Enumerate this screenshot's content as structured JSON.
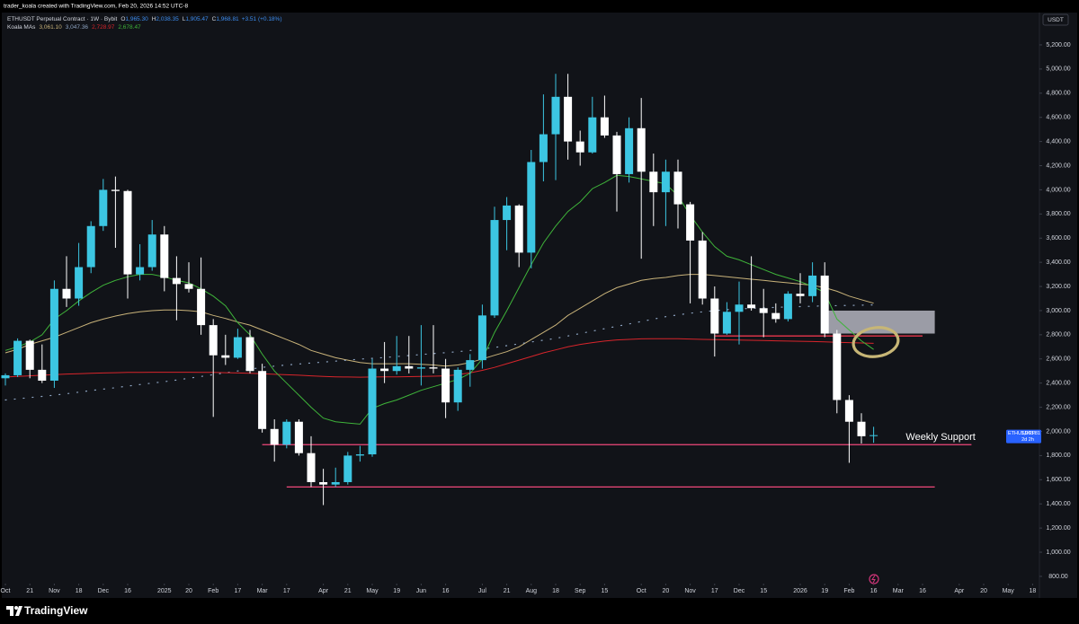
{
  "watermark": "trader_koala created with TradingView.com, Feb 20, 2026 14:52 UTC-8",
  "footer": {
    "brand": "TradingView"
  },
  "chart_data": {
    "type": "candlestick",
    "title": "ETHUSDT Perpetual Contract · 1W · Bybit",
    "header": {
      "keys": [
        "O",
        "H",
        "L",
        "C"
      ],
      "labels": [
        "1,965.30",
        "2,038.35",
        "1,905.47",
        "1,968.81"
      ],
      "change": "+3.51 (+0.18%)"
    },
    "currency": "USDT",
    "up_color": "#3cc6e2",
    "down_color": "#ffffff",
    "x": [
      "2024-10-07",
      "2024-10-14",
      "2024-10-21",
      "2024-10-28",
      "2024-11-04",
      "2024-11-11",
      "2024-11-18",
      "2024-11-25",
      "2024-12-02",
      "2024-12-09",
      "2024-12-16",
      "2024-12-23",
      "2024-12-30",
      "2025-01-06",
      "2025-01-13",
      "2025-01-20",
      "2025-01-27",
      "2025-02-03",
      "2025-02-10",
      "2025-02-17",
      "2025-02-24",
      "2025-03-03",
      "2025-03-10",
      "2025-03-17",
      "2025-03-24",
      "2025-03-31",
      "2025-04-07",
      "2025-04-14",
      "2025-04-21",
      "2025-04-28",
      "2025-05-05",
      "2025-05-12",
      "2025-05-19",
      "2025-05-26",
      "2025-06-02",
      "2025-06-09",
      "2025-06-16",
      "2025-06-23",
      "2025-06-30",
      "2025-07-07",
      "2025-07-14",
      "2025-07-21",
      "2025-07-28",
      "2025-08-04",
      "2025-08-11",
      "2025-08-18",
      "2025-08-25",
      "2025-09-01",
      "2025-09-08",
      "2025-09-15",
      "2025-09-22",
      "2025-09-29",
      "2025-10-06",
      "2025-10-13",
      "2025-10-20",
      "2025-10-27",
      "2025-11-03",
      "2025-11-10",
      "2025-11-17",
      "2025-11-24",
      "2025-12-01",
      "2025-12-08",
      "2025-12-15",
      "2025-12-22",
      "2025-12-29",
      "2026-01-05",
      "2026-01-12",
      "2026-01-19",
      "2026-01-26",
      "2026-02-02",
      "2026-02-09",
      "2026-02-16"
    ],
    "open": [
      2440,
      2465,
      2750,
      2510,
      2420,
      3180,
      3100,
      3360,
      3700,
      4000,
      3990,
      3300,
      3360,
      3630,
      3270,
      3220,
      3180,
      2880,
      2630,
      2610,
      2780,
      2500,
      2020,
      1890,
      2080,
      1820,
      1580,
      1560,
      1580,
      1800,
      1810,
      2520,
      2500,
      2540,
      2520,
      2530,
      2520,
      2240,
      2510,
      2590,
      2960,
      3750,
      3870,
      3480,
      4230,
      4460,
      4770,
      4400,
      4310,
      4600,
      4450,
      4130,
      4510,
      4150,
      3980,
      4150,
      3880,
      3580,
      3100,
      2810,
      2990,
      3050,
      3020,
      2980,
      2930,
      3140,
      3120,
      3290,
      2810,
      2260,
      2080,
      1965.3
    ],
    "high": [
      2480,
      2770,
      2760,
      2720,
      3250,
      3450,
      3560,
      3740,
      4090,
      4110,
      4000,
      3550,
      3750,
      3700,
      3450,
      3400,
      3440,
      2930,
      2800,
      2850,
      2840,
      2560,
      2100,
      2100,
      2100,
      1960,
      1690,
      1700,
      1830,
      1880,
      2600,
      2740,
      2790,
      2790,
      2880,
      2880,
      2600,
      2530,
      2640,
      3050,
      3860,
      3940,
      3880,
      4330,
      4790,
      4960,
      4960,
      4490,
      4770,
      4780,
      4480,
      4600,
      4760,
      4300,
      4250,
      4250,
      3900,
      3650,
      3200,
      3070,
      3240,
      3450,
      3180,
      3060,
      3160,
      3310,
      3400,
      3400,
      2840,
      2300,
      2150,
      2038.35
    ],
    "low": [
      2380,
      2450,
      2440,
      2400,
      2360,
      3030,
      3040,
      3310,
      3660,
      3520,
      3100,
      3250,
      3330,
      3160,
      2920,
      3150,
      2800,
      2120,
      2550,
      2600,
      2480,
      1990,
      1750,
      1860,
      1800,
      1540,
      1390,
      1540,
      1560,
      1750,
      1790,
      2400,
      2470,
      2480,
      2380,
      2480,
      2110,
      2170,
      2370,
      2520,
      2940,
      3500,
      3360,
      3350,
      4070,
      4080,
      4250,
      4200,
      4300,
      4430,
      3820,
      4060,
      3430,
      3700,
      3700,
      3680,
      3060,
      3050,
      2620,
      2800,
      2720,
      3000,
      2780,
      2900,
      2910,
      3060,
      3070,
      2780,
      2150,
      1740,
      1900,
      1905.47
    ],
    "close": [
      2465,
      2750,
      2510,
      2420,
      3180,
      3100,
      3360,
      3700,
      4000,
      3990,
      3300,
      3360,
      3630,
      3270,
      3220,
      3180,
      2880,
      2630,
      2610,
      2780,
      2500,
      2020,
      1890,
      2080,
      1820,
      1580,
      1560,
      1580,
      1800,
      1810,
      2520,
      2500,
      2540,
      2520,
      2530,
      2520,
      2240,
      2510,
      2590,
      2960,
      3750,
      3870,
      3480,
      4230,
      4460,
      4770,
      4400,
      4310,
      4600,
      4450,
      4130,
      4510,
      4150,
      3980,
      4150,
      3880,
      3580,
      3100,
      2810,
      2990,
      3050,
      3020,
      2980,
      2930,
      3140,
      3120,
      3290,
      2810,
      2260,
      2080,
      1960,
      1968.81
    ],
    "ma_legend": {
      "name": "Koala MAs",
      "labels": [
        "3,061.10",
        "3,047.36",
        "2,728.97",
        "2,678.47"
      ]
    },
    "series": [
      {
        "color": "#c9b37a",
        "style": "solid",
        "values": [
          2650,
          2680,
          2720,
          2750,
          2780,
          2820,
          2860,
          2900,
          2930,
          2955,
          2975,
          2990,
          3000,
          3005,
          3005,
          3000,
          2990,
          2960,
          2935,
          2905,
          2880,
          2840,
          2800,
          2760,
          2720,
          2670,
          2640,
          2610,
          2590,
          2570,
          2560,
          2560,
          2560,
          2560,
          2555,
          2550,
          2540,
          2550,
          2570,
          2600,
          2630,
          2660,
          2700,
          2760,
          2820,
          2880,
          2960,
          3020,
          3080,
          3140,
          3190,
          3220,
          3250,
          3265,
          3275,
          3290,
          3300,
          3300,
          3290,
          3280,
          3270,
          3260,
          3250,
          3240,
          3230,
          3220,
          3210,
          3190,
          3160,
          3120,
          3090,
          3061.1
        ]
      },
      {
        "color": "#8fa6c4",
        "style": "dotted",
        "values": [
          2260,
          2270,
          2280,
          2290,
          2300,
          2312,
          2325,
          2338,
          2350,
          2362,
          2375,
          2388,
          2400,
          2412,
          2425,
          2440,
          2455,
          2470,
          2485,
          2500,
          2515,
          2530,
          2540,
          2550,
          2558,
          2566,
          2574,
          2582,
          2590,
          2598,
          2605,
          2612,
          2620,
          2628,
          2636,
          2644,
          2652,
          2660,
          2670,
          2682,
          2695,
          2710,
          2725,
          2740,
          2755,
          2770,
          2790,
          2810,
          2830,
          2850,
          2870,
          2890,
          2910,
          2930,
          2950,
          2965,
          2978,
          2990,
          3000,
          3008,
          3014,
          3019,
          3023,
          3027,
          3030,
          3033,
          3036,
          3039,
          3041,
          3043,
          3045,
          3047.36
        ]
      },
      {
        "color": "#d8252b",
        "style": "solid",
        "values": [
          2450,
          2455,
          2460,
          2465,
          2470,
          2475,
          2478,
          2481,
          2484,
          2486,
          2488,
          2489,
          2490,
          2490,
          2490,
          2490,
          2489,
          2488,
          2486,
          2484,
          2481,
          2477,
          2473,
          2469,
          2465,
          2460,
          2455,
          2452,
          2450,
          2449,
          2450,
          2451,
          2452,
          2453,
          2455,
          2457,
          2460,
          2470,
          2485,
          2505,
          2530,
          2560,
          2590,
          2620,
          2650,
          2675,
          2700,
          2720,
          2735,
          2748,
          2757,
          2762,
          2766,
          2768,
          2768,
          2767,
          2765,
          2762,
          2760,
          2758,
          2756,
          2754,
          2752,
          2750,
          2748,
          2746,
          2744,
          2741,
          2738,
          2735,
          2732,
          2728.97
        ]
      },
      {
        "color": "#3fb43a",
        "style": "solid",
        "values": [
          2670,
          2700,
          2740,
          2800,
          2930,
          3000,
          3080,
          3150,
          3210,
          3250,
          3280,
          3300,
          3300,
          3280,
          3250,
          3230,
          3180,
          3120,
          3040,
          2900,
          2800,
          2640,
          2500,
          2400,
          2300,
          2200,
          2110,
          2080,
          2070,
          2060,
          2190,
          2230,
          2260,
          2300,
          2340,
          2370,
          2400,
          2430,
          2480,
          2600,
          2820,
          3000,
          3190,
          3380,
          3560,
          3700,
          3820,
          3900,
          4010,
          4060,
          4120,
          4110,
          4090,
          4070,
          4050,
          3950,
          3790,
          3650,
          3530,
          3450,
          3420,
          3380,
          3340,
          3300,
          3270,
          3240,
          3200,
          3150,
          2930,
          2840,
          2750,
          2678.47
        ]
      }
    ],
    "levels": [
      {
        "value": 1890,
        "from": "2025-03-03",
        "to": "2026-04-13",
        "color": "#f0487a",
        "label": "Weekly Support"
      },
      {
        "value": 1540,
        "from": "2025-03-17",
        "to": "2026-03-23",
        "color": "#f0487a"
      },
      {
        "value": 2790,
        "from": "2025-11-17",
        "to": "2026-03-16",
        "color": "#e8364a"
      }
    ],
    "zone": {
      "top": 3000,
      "bottom": 2810,
      "from": "2026-01-19",
      "to": "2026-03-23",
      "color": "#c9cbd6"
    },
    "price_tag": {
      "symbol": "ETHUSDT.P",
      "label": "1,968.81",
      "countdown": "2d 2h",
      "color": "#2962ff"
    },
    "ylim": [
      740,
      5460
    ],
    "yticks": [
      {
        "value": 800,
        "label": "800.00"
      },
      {
        "value": 1000,
        "label": "1,000.00"
      },
      {
        "value": 1200,
        "label": "1,200.00"
      },
      {
        "value": 1400,
        "label": "1,400.00"
      },
      {
        "value": 1600,
        "label": "1,600.00"
      },
      {
        "value": 1800,
        "label": "1,800.00"
      },
      {
        "value": 2000,
        "label": "2,000.00"
      },
      {
        "value": 2200,
        "label": "2,200.00"
      },
      {
        "value": 2400,
        "label": "2,400.00"
      },
      {
        "value": 2600,
        "label": "2,600.00"
      },
      {
        "value": 2800,
        "label": "2,800.00"
      },
      {
        "value": 3000,
        "label": "3,000.00"
      },
      {
        "value": 3200,
        "label": "3,200.00"
      },
      {
        "value": 3400,
        "label": "3,400.00"
      },
      {
        "value": 3600,
        "label": "3,600.00"
      },
      {
        "value": 3800,
        "label": "3,800.00"
      },
      {
        "value": 4000,
        "label": "4,000.00"
      },
      {
        "value": 4200,
        "label": "4,200.00"
      },
      {
        "value": 4400,
        "label": "4,400.00"
      },
      {
        "value": 4600,
        "label": "4,600.00"
      },
      {
        "value": 4800,
        "label": "4,800.00"
      },
      {
        "value": 5000,
        "label": "5,000.00"
      },
      {
        "value": 5200,
        "label": "5,200.00"
      }
    ],
    "xticks": [
      {
        "value": "2024-10-07",
        "label": "Oct"
      },
      {
        "value": "2024-10-21",
        "label": "21"
      },
      {
        "value": "2024-11-04",
        "label": "Nov"
      },
      {
        "value": "2024-11-18",
        "label": "18"
      },
      {
        "value": "2024-12-02",
        "label": "Dec"
      },
      {
        "value": "2024-12-16",
        "label": "16"
      },
      {
        "value": "2025-01-06",
        "label": "2025"
      },
      {
        "value": "2025-01-20",
        "label": "20"
      },
      {
        "value": "2025-02-03",
        "label": "Feb"
      },
      {
        "value": "2025-02-17",
        "label": "17"
      },
      {
        "value": "2025-03-03",
        "label": "Mar"
      },
      {
        "value": "2025-03-17",
        "label": "17"
      },
      {
        "value": "2025-04-07",
        "label": "Apr"
      },
      {
        "value": "2025-04-21",
        "label": "21"
      },
      {
        "value": "2025-05-05",
        "label": "May"
      },
      {
        "value": "2025-05-19",
        "label": "19"
      },
      {
        "value": "2025-06-02",
        "label": "Jun"
      },
      {
        "value": "2025-06-16",
        "label": "16"
      },
      {
        "value": "2025-07-07",
        "label": "Jul"
      },
      {
        "value": "2025-07-21",
        "label": "21"
      },
      {
        "value": "2025-08-04",
        "label": "Aug"
      },
      {
        "value": "2025-08-18",
        "label": "18"
      },
      {
        "value": "2025-09-01",
        "label": "Sep"
      },
      {
        "value": "2025-09-15",
        "label": "15"
      },
      {
        "value": "2025-10-06",
        "label": "Oct"
      },
      {
        "value": "2025-10-20",
        "label": "20"
      },
      {
        "value": "2025-11-03",
        "label": "Nov"
      },
      {
        "value": "2025-11-17",
        "label": "17"
      },
      {
        "value": "2025-12-01",
        "label": "Dec"
      },
      {
        "value": "2025-12-15",
        "label": "15"
      },
      {
        "value": "2026-01-05",
        "label": "2026"
      },
      {
        "value": "2026-01-19",
        "label": "19"
      },
      {
        "value": "2026-02-02",
        "label": "Feb"
      },
      {
        "value": "2026-02-16",
        "label": "16"
      },
      {
        "value": "2026-03-02",
        "label": "Mar"
      },
      {
        "value": "2026-03-16",
        "label": "16"
      },
      {
        "value": "2026-04-06",
        "label": "Apr"
      },
      {
        "value": "2026-04-20",
        "label": "20"
      },
      {
        "value": "2026-05-04",
        "label": "May"
      },
      {
        "value": "2026-05-18",
        "label": "18"
      }
    ],
    "grid": false
  }
}
